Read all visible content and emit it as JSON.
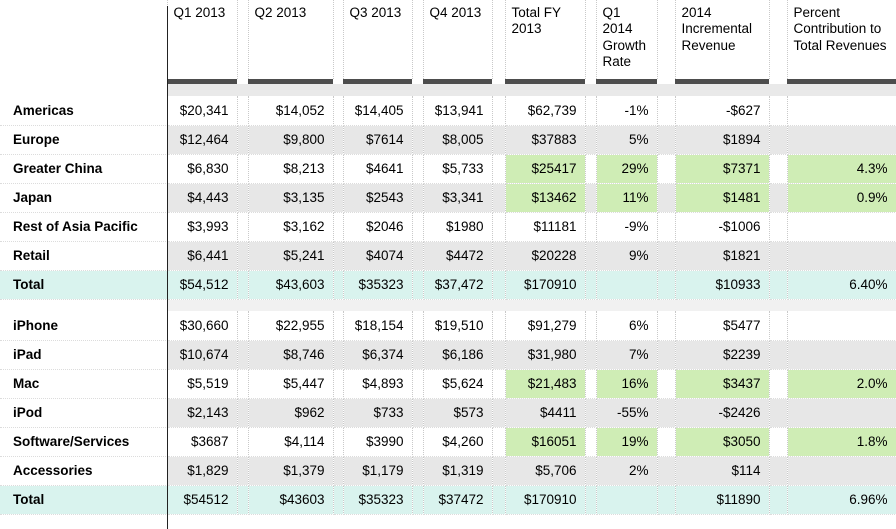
{
  "table": {
    "columns": [
      "Q1 2013",
      "Q2 2013",
      "Q3 2013",
      "Q4 2013",
      "Total FY 2013",
      "Q1 2014 Growth Rate",
      "2014 Incremental Revenue",
      "Percent Contribution to Total Revenues"
    ],
    "sections": [
      {
        "name": "regions",
        "rows": [
          {
            "label": "Americas",
            "shade": "white",
            "green": [],
            "cells": [
              "$20,341",
              "$14,052",
              "$14,405",
              "$13,941",
              "$62,739",
              "-1%",
              "-$627",
              ""
            ]
          },
          {
            "label": "Europe",
            "shade": "gray",
            "green": [],
            "cells": [
              "$12,464",
              "$9,800",
              "$7614",
              "$8,005",
              "$37883",
              "5%",
              "$1894",
              ""
            ]
          },
          {
            "label": "Greater China",
            "shade": "white",
            "green": [
              4,
              5,
              6,
              7
            ],
            "cells": [
              "$6,830",
              "$8,213",
              "$4641",
              "$5,733",
              "$25417",
              "29%",
              "$7371",
              "4.3%"
            ]
          },
          {
            "label": "Japan",
            "shade": "gray",
            "green": [
              4,
              5,
              6,
              7
            ],
            "cells": [
              "$4,443",
              "$3,135",
              "$2543",
              "$3,341",
              "$13462",
              "11%",
              "$1481",
              "0.9%"
            ]
          },
          {
            "label": "Rest of Asia Pacific",
            "shade": "white",
            "green": [],
            "cells": [
              "$3,993",
              "$3,162",
              "$2046",
              "$1980",
              "$11181",
              "-9%",
              "-$1006",
              ""
            ]
          },
          {
            "label": "Retail",
            "shade": "gray",
            "green": [],
            "cells": [
              "$6,441",
              "$5,241",
              "$4074",
              "$4472",
              "$20228",
              "9%",
              "$1821",
              ""
            ]
          },
          {
            "label": "Total",
            "shade": "total",
            "green": [],
            "cells": [
              "$54,512",
              "$43,603",
              "$35323",
              "$37,472",
              "$170910",
              "",
              "$10933",
              "6.40%"
            ]
          }
        ]
      },
      {
        "name": "products",
        "rows": [
          {
            "label": "iPhone",
            "shade": "white",
            "green": [],
            "cells": [
              "$30,660",
              "$22,955",
              "$18,154",
              "$19,510",
              "$91,279",
              "6%",
              "$5477",
              ""
            ]
          },
          {
            "label": "iPad",
            "shade": "gray",
            "green": [],
            "cells": [
              "$10,674",
              "$8,746",
              "$6,374",
              "$6,186",
              "$31,980",
              "7%",
              "$2239",
              ""
            ]
          },
          {
            "label": "Mac",
            "shade": "white",
            "green": [
              4,
              5,
              6,
              7
            ],
            "cells": [
              "$5,519",
              "$5,447",
              "$4,893",
              "$5,624",
              "$21,483",
              "16%",
              "$3437",
              "2.0%"
            ]
          },
          {
            "label": "iPod",
            "shade": "gray",
            "green": [],
            "cells": [
              "$2,143",
              "$962",
              "$733",
              "$573",
              "$4411",
              "-55%",
              "-$2426",
              ""
            ]
          },
          {
            "label": "Software/Services",
            "shade": "white",
            "green": [
              4,
              5,
              6,
              7
            ],
            "cells": [
              "$3687",
              "$4,114",
              "$3990",
              "$4,260",
              "$16051",
              "19%",
              "$3050",
              "1.8%"
            ]
          },
          {
            "label": "Accessories",
            "shade": "gray",
            "green": [],
            "cells": [
              "$1,829",
              "$1,379",
              "$1,179",
              "$1,319",
              "$5,706",
              "2%",
              "$114",
              ""
            ]
          },
          {
            "label": "Total",
            "shade": "total",
            "green": [],
            "cells": [
              "$54512",
              "$43603",
              "$35323",
              "$37472",
              "$170910",
              "",
              "$11890",
              "6.96%"
            ]
          }
        ]
      }
    ]
  },
  "colors": {
    "gray_row": "#e7e7e7",
    "total_row": "#d9f3ee",
    "green_cell": "#cfedb5",
    "header_rule": "#4d4d4d",
    "divider_line": "#222222",
    "header_band": "#e9e9e9",
    "section_spacer": "#f1f1f1"
  }
}
